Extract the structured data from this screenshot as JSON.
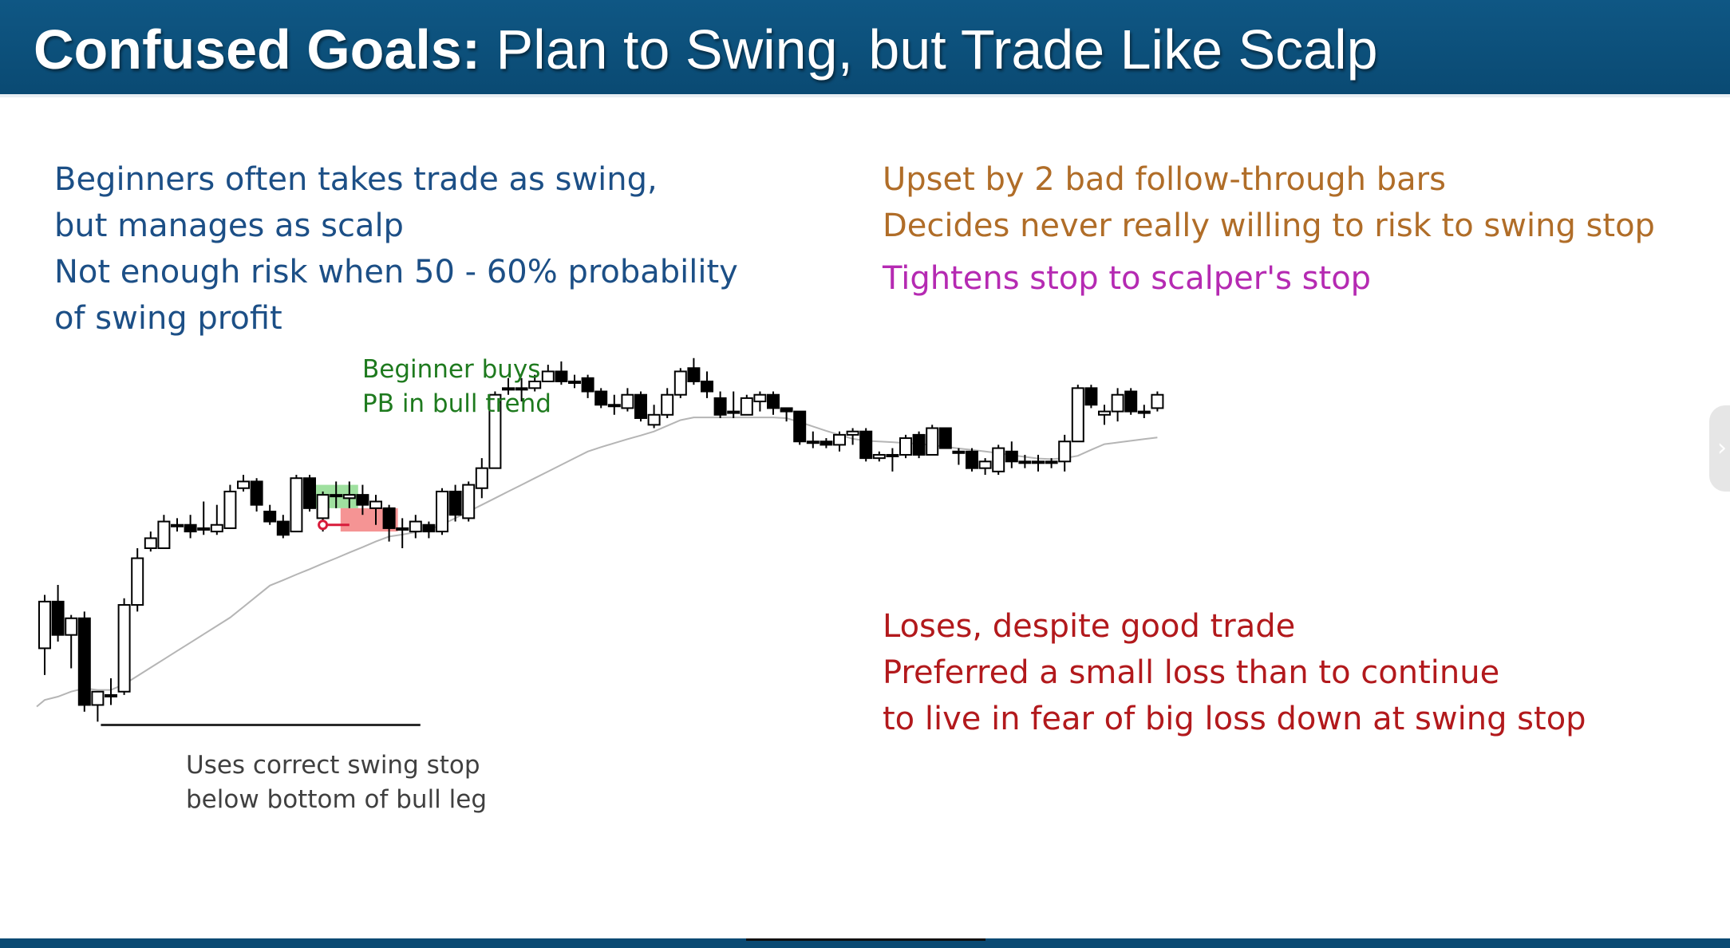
{
  "slide": {
    "title_bold": "Confused Goals:",
    "title_rest": " Plan to Swing, but Trade Like Scalp",
    "colors": {
      "title_bar": "#0a4a73",
      "left_note": "#1c4f86",
      "upset_note": "#b06d28",
      "tighten_note": "#b52ab2",
      "loses_note": "#b2191c",
      "green_label": "#1e7a1e",
      "entry_highlight": "#7fd67f",
      "stop_highlight": "#f05a5a"
    }
  },
  "notes": {
    "left_lines": [
      "Beginners often takes trade as swing,",
      "but manages as scalp",
      "Not enough risk when 50 - 60% probability",
      "of swing profit"
    ],
    "upset_lines": [
      "Upset by 2 bad follow-through bars",
      "Decides never really willing to risk to swing stop"
    ],
    "tighten_line": "Tightens stop to scalper's stop",
    "loses_lines": [
      "Loses, despite good trade",
      "Preferred a small loss than to continue",
      "to live in fear of big loss down at swing stop"
    ]
  },
  "annotations": {
    "beginner_buys_lines": [
      "Beginner buys",
      "PB in bull trend"
    ],
    "swing_stop_lines": [
      "Uses correct swing stop",
      "below bottom of bull leg"
    ]
  },
  "chart_data": {
    "type": "candlestick",
    "title": "",
    "ylim": [
      0,
      100
    ],
    "bars": [
      {
        "o": 20,
        "h": 36,
        "l": 12,
        "c": 34
      },
      {
        "o": 34,
        "h": 39,
        "l": 22,
        "c": 24
      },
      {
        "o": 24,
        "h": 30,
        "l": 14,
        "c": 29
      },
      {
        "o": 29,
        "h": 31,
        "l": 1,
        "c": 3
      },
      {
        "o": 3,
        "h": 6,
        "l": -2,
        "c": 7
      },
      {
        "o": 6,
        "h": 11,
        "l": 3,
        "c": 6
      },
      {
        "o": 7,
        "h": 35,
        "l": 6,
        "c": 33
      },
      {
        "o": 33,
        "h": 50,
        "l": 31,
        "c": 47
      },
      {
        "o": 50,
        "h": 55,
        "l": 49,
        "c": 53
      },
      {
        "o": 50,
        "h": 60,
        "l": 50,
        "c": 58
      },
      {
        "o": 57,
        "h": 59,
        "l": 55,
        "c": 57
      },
      {
        "o": 57,
        "h": 60,
        "l": 53,
        "c": 55
      },
      {
        "o": 56,
        "h": 64,
        "l": 54,
        "c": 56
      },
      {
        "o": 55,
        "h": 63,
        "l": 54,
        "c": 57
      },
      {
        "o": 56,
        "h": 69,
        "l": 56,
        "c": 67
      },
      {
        "o": 68,
        "h": 72,
        "l": 67,
        "c": 70
      },
      {
        "o": 70,
        "h": 71,
        "l": 61,
        "c": 63
      },
      {
        "o": 61,
        "h": 63,
        "l": 57,
        "c": 58
      },
      {
        "o": 58,
        "h": 60,
        "l": 53,
        "c": 54
      },
      {
        "o": 55,
        "h": 72,
        "l": 55,
        "c": 71
      },
      {
        "o": 71,
        "h": 72,
        "l": 61,
        "c": 62
      },
      {
        "o": 59,
        "h": 67,
        "l": 55,
        "c": 66
      },
      {
        "o": 66,
        "h": 70,
        "l": 62,
        "c": 66
      },
      {
        "o": 65,
        "h": 70,
        "l": 62,
        "c": 66
      },
      {
        "o": 66,
        "h": 69,
        "l": 60,
        "c": 63
      },
      {
        "o": 62,
        "h": 66,
        "l": 57,
        "c": 64
      },
      {
        "o": 62,
        "h": 63,
        "l": 52,
        "c": 56
      },
      {
        "o": 56,
        "h": 59,
        "l": 50,
        "c": 56
      },
      {
        "o": 55,
        "h": 60,
        "l": 53,
        "c": 58
      },
      {
        "o": 57,
        "h": 58,
        "l": 53,
        "c": 55
      },
      {
        "o": 55,
        "h": 68,
        "l": 54,
        "c": 67
      },
      {
        "o": 67,
        "h": 69,
        "l": 58,
        "c": 60
      },
      {
        "o": 59,
        "h": 70,
        "l": 58,
        "c": 69
      },
      {
        "o": 68,
        "h": 77,
        "l": 65,
        "c": 74
      },
      {
        "o": 74,
        "h": 97,
        "l": 74,
        "c": 96
      },
      {
        "o": 98,
        "h": 101,
        "l": 96,
        "c": 98
      },
      {
        "o": 98,
        "h": 101,
        "l": 94,
        "c": 98
      },
      {
        "o": 98,
        "h": 102,
        "l": 97,
        "c": 100
      },
      {
        "o": 100,
        "h": 105,
        "l": 100,
        "c": 103
      },
      {
        "o": 103,
        "h": 106,
        "l": 99,
        "c": 100
      },
      {
        "o": 100,
        "h": 102,
        "l": 98,
        "c": 100
      },
      {
        "o": 101,
        "h": 102,
        "l": 95,
        "c": 97
      },
      {
        "o": 97,
        "h": 98,
        "l": 92,
        "c": 93
      },
      {
        "o": 93,
        "h": 96,
        "l": 90,
        "c": 93
      },
      {
        "o": 92,
        "h": 98,
        "l": 91,
        "c": 96
      },
      {
        "o": 96,
        "h": 97,
        "l": 88,
        "c": 89
      },
      {
        "o": 87,
        "h": 93,
        "l": 86,
        "c": 90
      },
      {
        "o": 90,
        "h": 98,
        "l": 89,
        "c": 96
      },
      {
        "o": 96,
        "h": 104,
        "l": 95,
        "c": 103
      },
      {
        "o": 104,
        "h": 107,
        "l": 99,
        "c": 100
      },
      {
        "o": 100,
        "h": 103,
        "l": 95,
        "c": 97
      },
      {
        "o": 95,
        "h": 97,
        "l": 89,
        "c": 90
      },
      {
        "o": 91,
        "h": 97,
        "l": 89,
        "c": 91
      },
      {
        "o": 90,
        "h": 96,
        "l": 90,
        "c": 95
      },
      {
        "o": 94,
        "h": 97,
        "l": 91,
        "c": 96
      },
      {
        "o": 96,
        "h": 97,
        "l": 90,
        "c": 92
      },
      {
        "o": 92,
        "h": 92,
        "l": 88,
        "c": 91
      },
      {
        "o": 91,
        "h": 91,
        "l": 81,
        "c": 82
      },
      {
        "o": 82,
        "h": 85,
        "l": 80,
        "c": 82
      },
      {
        "o": 82,
        "h": 83,
        "l": 80,
        "c": 81
      },
      {
        "o": 81,
        "h": 85,
        "l": 79,
        "c": 84
      },
      {
        "o": 84,
        "h": 86,
        "l": 81,
        "c": 85
      },
      {
        "o": 85,
        "h": 86,
        "l": 76,
        "c": 77
      },
      {
        "o": 77,
        "h": 79,
        "l": 76,
        "c": 78
      },
      {
        "o": 78,
        "h": 80,
        "l": 73,
        "c": 78
      },
      {
        "o": 78,
        "h": 84,
        "l": 77,
        "c": 83
      },
      {
        "o": 84,
        "h": 85,
        "l": 77,
        "c": 78
      },
      {
        "o": 78,
        "h": 87,
        "l": 78,
        "c": 86
      },
      {
        "o": 86,
        "h": 86,
        "l": 80,
        "c": 80
      },
      {
        "o": 79,
        "h": 80,
        "l": 75,
        "c": 79
      },
      {
        "o": 79,
        "h": 80,
        "l": 73,
        "c": 74
      },
      {
        "o": 74,
        "h": 77,
        "l": 72,
        "c": 76
      },
      {
        "o": 73,
        "h": 81,
        "l": 72,
        "c": 80
      },
      {
        "o": 79,
        "h": 82,
        "l": 74,
        "c": 76
      },
      {
        "o": 76,
        "h": 78,
        "l": 74,
        "c": 76
      },
      {
        "o": 76,
        "h": 78,
        "l": 73,
        "c": 76
      },
      {
        "o": 76,
        "h": 77,
        "l": 74,
        "c": 76
      },
      {
        "o": 76,
        "h": 84,
        "l": 73,
        "c": 82
      },
      {
        "o": 82,
        "h": 99,
        "l": 82,
        "c": 98
      },
      {
        "o": 98,
        "h": 99,
        "l": 92,
        "c": 93
      },
      {
        "o": 90,
        "h": 93,
        "l": 87,
        "c": 91
      },
      {
        "o": 91,
        "h": 98,
        "l": 88,
        "c": 96
      },
      {
        "o": 97,
        "h": 98,
        "l": 90,
        "c": 91
      },
      {
        "o": 91,
        "h": 93,
        "l": 89,
        "c": 91
      },
      {
        "o": 92,
        "h": 97,
        "l": 91,
        "c": 96
      }
    ],
    "moving_average": [
      4.5,
      5.5,
      7.0,
      8.0,
      7.5,
      7.5,
      9.2,
      11.7,
      14.2,
      16.7,
      19.2,
      21.7,
      24.2,
      26.7,
      29.2,
      32.4,
      35.6,
      38.8,
      40.4,
      42.1,
      43.7,
      45.4,
      47.0,
      48.7,
      50.3,
      52.0,
      53.5,
      54.1,
      54.8,
      55.5,
      57.1,
      59.0,
      61.0,
      63.0,
      65.0,
      67.0,
      69.0,
      71.0,
      73.0,
      75.0,
      77.0,
      79.0,
      80.3,
      81.5,
      82.7,
      83.8,
      85.0,
      86.7,
      88.4,
      89.2,
      89.2,
      89.2,
      89.2,
      89.2,
      89.2,
      89.2,
      89.0,
      87.8,
      86.5,
      85.2,
      84.0,
      82.8,
      82.2,
      82.0,
      81.8,
      81.5,
      81.3,
      80.9,
      80.4,
      79.9,
      79.5,
      79.0,
      78.5,
      77.9,
      77.4,
      76.9,
      76.7,
      77.0,
      77.7,
      79.5,
      81.2,
      81.7,
      82.2,
      82.7,
      83.2
    ],
    "stop_line_bars": [
      4,
      28
    ],
    "stop_line_value": -3,
    "entry_bars": [
      21,
      23
    ],
    "entry_zone": [
      62,
      69
    ],
    "stop_zone_bars": [
      23,
      26
    ],
    "stop_zone": [
      55,
      62
    ],
    "stop_marker_bar": 21,
    "stop_marker_value": 57
  }
}
